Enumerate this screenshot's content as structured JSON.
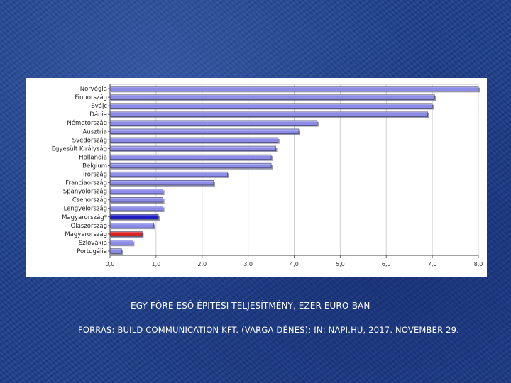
{
  "caption": {
    "title": "EGY FŐRE ESŐ ÉPÍTÉSI TELJESÍTMÉNY, EZER EURO-BAN",
    "source": "FORRÁS: BUILD COMMUNICATION KFT. (VARGA DÉNES); IN: NAPI.HU, 2017. NOVEMBER 29."
  },
  "colors": {
    "bar_default": "#8c8ce8",
    "bar_highlight_blue": "#1c1cc8",
    "bar_highlight_red": "#dd2222",
    "bar_outline": "#333355"
  },
  "chart_data": {
    "type": "bar",
    "orientation": "horizontal",
    "categories": [
      "Norvégia",
      "Finnország",
      "Svájc",
      "Dánia",
      "Németország",
      "Ausztria",
      "Svédország",
      "Egyesült Királyság",
      "Hollandia",
      "Belgium",
      "Írország",
      "Franciaország",
      "Spanyolország",
      "Csehország",
      "Lengyelország",
      "Magyarország*",
      "Olaszország",
      "Magyarország",
      "Szlovákia",
      "Portugália"
    ],
    "values": [
      8.0,
      7.05,
      7.0,
      6.9,
      4.5,
      4.1,
      3.65,
      3.6,
      3.5,
      3.5,
      2.55,
      2.25,
      1.15,
      1.15,
      1.15,
      1.05,
      0.95,
      0.7,
      0.5,
      0.25
    ],
    "highlights": {
      "Magyarország*": "blue",
      "Magyarország": "red"
    },
    "xlim": [
      0,
      8
    ],
    "xticks": [
      "0,0",
      "1,0",
      "2,0",
      "3,0",
      "4,0",
      "5,0",
      "6,0",
      "7,0",
      "8,0"
    ],
    "grid": true,
    "legend": "none"
  }
}
